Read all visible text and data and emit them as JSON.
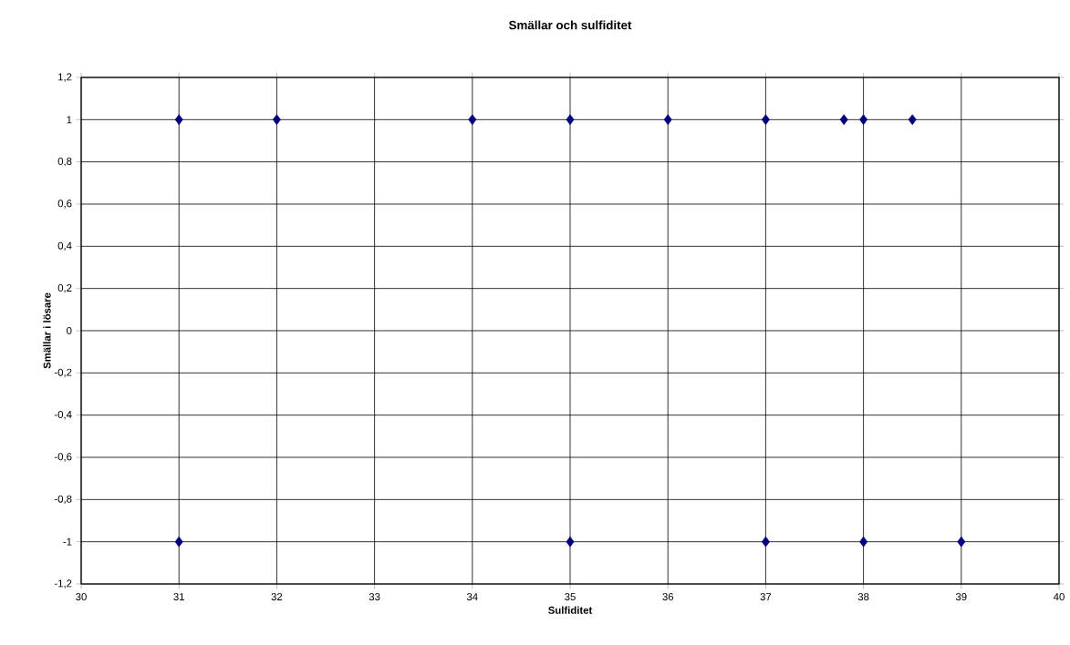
{
  "chart_data": {
    "type": "scatter",
    "title": "Smällar och sulfiditet",
    "xlabel": "Sulfiditet",
    "ylabel": "Smällar i lösare",
    "x": [
      31,
      32,
      34,
      35,
      36,
      37,
      37.8,
      38,
      38.5,
      31,
      35,
      37,
      38,
      39
    ],
    "series": [
      {
        "color": "#000080",
        "values": [
          1,
          1,
          1,
          1,
          1,
          1,
          1,
          1,
          1,
          -1,
          -1,
          -1,
          -1,
          -1
        ]
      }
    ],
    "marker": "diamond",
    "grid": true,
    "xlim": [
      30,
      40
    ],
    "xticks": [
      30,
      31,
      32,
      33,
      34,
      35,
      36,
      37,
      38,
      39,
      40
    ],
    "ylim": [
      -1.2,
      1.2
    ],
    "yticks": [
      {
        "value": -1.2,
        "label": "-1,2"
      },
      {
        "value": -1,
        "label": "-1"
      },
      {
        "value": -0.8,
        "label": "-0,8"
      },
      {
        "value": -0.6,
        "label": "-0,6"
      },
      {
        "value": -0.4,
        "label": "-0,4"
      },
      {
        "value": -0.2,
        "label": "-0,2"
      },
      {
        "value": 0,
        "label": "0"
      },
      {
        "value": 0.2,
        "label": "0,2"
      },
      {
        "value": 0.4,
        "label": "0,4"
      },
      {
        "value": 0.6,
        "label": "0,6"
      },
      {
        "value": 0.8,
        "label": "0,8"
      },
      {
        "value": 1,
        "label": "1"
      },
      {
        "value": 1.2,
        "label": "1,2"
      }
    ]
  }
}
